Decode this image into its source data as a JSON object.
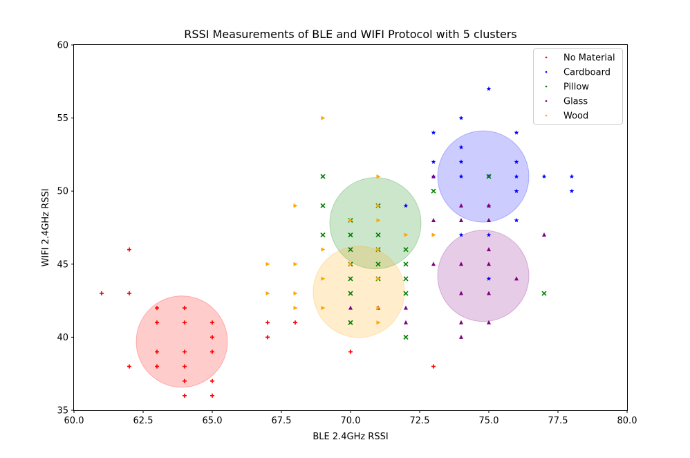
{
  "chart_data": {
    "type": "scatter",
    "title": "RSSI Measurements of BLE and WIFI Protocol with 5 clusters",
    "xlabel": "BLE 2.4GHz RSSI",
    "ylabel": "WIFI 2.4GHz RSSI",
    "xlim": [
      60,
      80
    ],
    "ylim": [
      35,
      60
    ],
    "xticks": [
      "60.0",
      "62.5",
      "65.0",
      "67.5",
      "70.0",
      "72.5",
      "75.0",
      "77.5",
      "80.0"
    ],
    "yticks": [
      "35",
      "40",
      "45",
      "50",
      "55",
      "60"
    ],
    "grid": false,
    "legend_position": "top-right",
    "series": [
      {
        "name": "No Material",
        "color": "#ff0000",
        "marker": "plus",
        "cluster": {
          "x": 63.9,
          "y": 39.7
        },
        "points": [
          [
            61,
            43
          ],
          [
            62,
            46
          ],
          [
            62,
            43
          ],
          [
            62,
            38
          ],
          [
            63,
            42
          ],
          [
            63,
            41
          ],
          [
            63,
            39
          ],
          [
            63,
            38
          ],
          [
            64,
            42
          ],
          [
            64,
            41
          ],
          [
            64,
            39
          ],
          [
            64,
            38
          ],
          [
            64,
            37
          ],
          [
            64,
            36
          ],
          [
            65,
            41
          ],
          [
            65,
            40
          ],
          [
            65,
            39
          ],
          [
            65,
            37
          ],
          [
            65,
            36
          ],
          [
            67,
            41
          ],
          [
            67,
            40
          ],
          [
            68,
            41
          ],
          [
            70,
            39
          ],
          [
            73,
            38
          ]
        ]
      },
      {
        "name": "Cardboard",
        "color": "#0000ff",
        "marker": "star",
        "cluster": {
          "x": 74.8,
          "y": 51.0
        },
        "points": [
          [
            72,
            49
          ],
          [
            73,
            54
          ],
          [
            73,
            52
          ],
          [
            73,
            51
          ],
          [
            74,
            55
          ],
          [
            74,
            53
          ],
          [
            74,
            52
          ],
          [
            74,
            51
          ],
          [
            74,
            47
          ],
          [
            75,
            57
          ],
          [
            75,
            51
          ],
          [
            75,
            49
          ],
          [
            75,
            47
          ],
          [
            75,
            44
          ],
          [
            76,
            54
          ],
          [
            76,
            52
          ],
          [
            76,
            51
          ],
          [
            76,
            50
          ],
          [
            76,
            48
          ],
          [
            77,
            51
          ],
          [
            78,
            51
          ],
          [
            78,
            50
          ]
        ]
      },
      {
        "name": "Pillow",
        "color": "#008000",
        "marker": "x",
        "cluster": {
          "x": 70.9,
          "y": 47.8
        },
        "points": [
          [
            69,
            51
          ],
          [
            69,
            49
          ],
          [
            69,
            47
          ],
          [
            70,
            48
          ],
          [
            70,
            47
          ],
          [
            70,
            46
          ],
          [
            70,
            45
          ],
          [
            70,
            44
          ],
          [
            70,
            43
          ],
          [
            70,
            41
          ],
          [
            71,
            49
          ],
          [
            71,
            47
          ],
          [
            71,
            46
          ],
          [
            71,
            45
          ],
          [
            71,
            44
          ],
          [
            72,
            46
          ],
          [
            72,
            45
          ],
          [
            72,
            44
          ],
          [
            72,
            43
          ],
          [
            72,
            40
          ],
          [
            73,
            50
          ],
          [
            75,
            51
          ],
          [
            77,
            43
          ]
        ]
      },
      {
        "name": "Glass",
        "color": "#800080",
        "marker": "triangle",
        "cluster": {
          "x": 74.8,
          "y": 44.2
        },
        "points": [
          [
            70,
            42
          ],
          [
            71,
            42
          ],
          [
            72,
            42
          ],
          [
            72,
            41
          ],
          [
            73,
            51
          ],
          [
            73,
            48
          ],
          [
            73,
            45
          ],
          [
            74,
            49
          ],
          [
            74,
            48
          ],
          [
            74,
            45
          ],
          [
            74,
            43
          ],
          [
            74,
            41
          ],
          [
            74,
            40
          ],
          [
            75,
            49
          ],
          [
            75,
            48
          ],
          [
            75,
            46
          ],
          [
            75,
            45
          ],
          [
            75,
            43
          ],
          [
            75,
            41
          ],
          [
            76,
            44
          ],
          [
            77,
            47
          ]
        ]
      },
      {
        "name": "Wood",
        "color": "#ffa500",
        "marker": "triangle-right",
        "cluster": {
          "x": 70.3,
          "y": 43.1
        },
        "points": [
          [
            67,
            45
          ],
          [
            67,
            43
          ],
          [
            68,
            49
          ],
          [
            68,
            45
          ],
          [
            68,
            43
          ],
          [
            68,
            42
          ],
          [
            69,
            55
          ],
          [
            69,
            46
          ],
          [
            69,
            44
          ],
          [
            69,
            42
          ],
          [
            70,
            48
          ],
          [
            70,
            45
          ],
          [
            71,
            51
          ],
          [
            71,
            49
          ],
          [
            71,
            48
          ],
          [
            71,
            46
          ],
          [
            71,
            44
          ],
          [
            71,
            42
          ],
          [
            71,
            41
          ],
          [
            72,
            47
          ],
          [
            73,
            47
          ]
        ]
      }
    ]
  }
}
